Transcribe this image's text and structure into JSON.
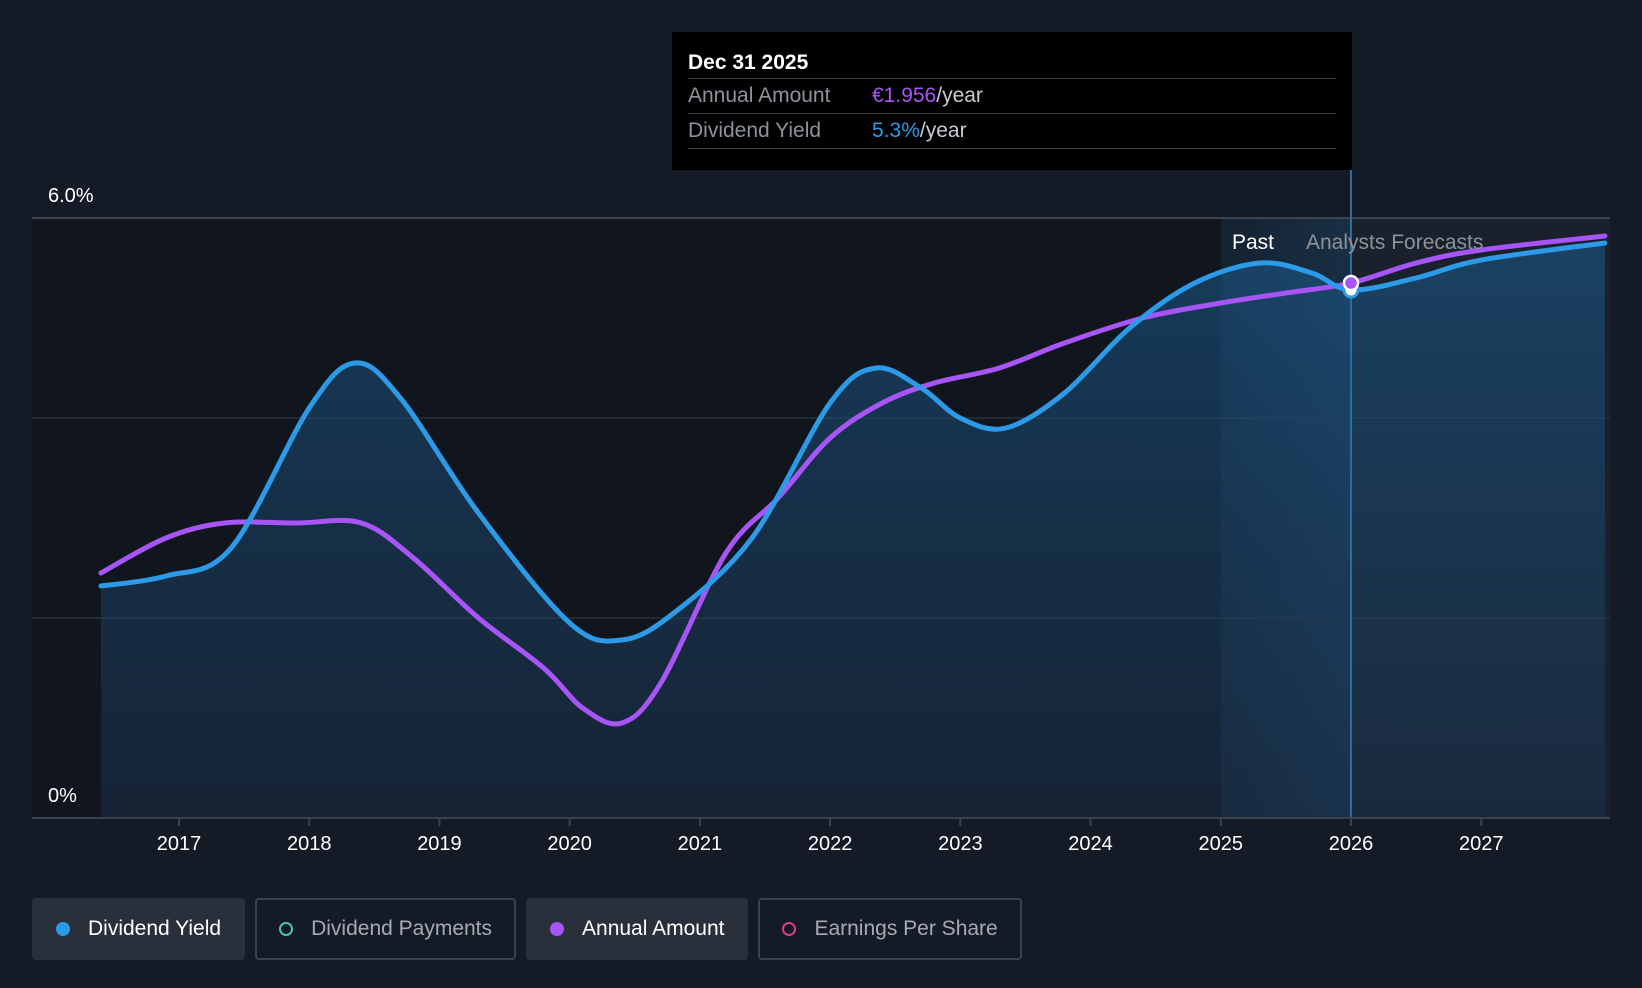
{
  "tooltip": {
    "date": "Dec 31 2025",
    "rows": [
      {
        "label": "Annual Amount",
        "value": "€1.956",
        "unit": "/year"
      },
      {
        "label": "Dividend Yield",
        "value": "5.3%",
        "unit": "/year"
      }
    ]
  },
  "regions": {
    "past": "Past",
    "forecast": "Analysts Forecasts"
  },
  "legend": [
    {
      "label": "Dividend Yield",
      "color": "#2c9ae6",
      "active": true,
      "filled": true
    },
    {
      "label": "Dividend Payments",
      "color": "#4fc3b0",
      "active": false,
      "filled": false
    },
    {
      "label": "Annual Amount",
      "color": "#a855f7",
      "active": true,
      "filled": true
    },
    {
      "label": "Earnings Per Share",
      "color": "#d6407f",
      "active": false,
      "filled": false
    }
  ],
  "chart_data": {
    "type": "line",
    "x_tick_labels": [
      "2017",
      "2018",
      "2019",
      "2020",
      "2021",
      "2022",
      "2023",
      "2024",
      "2025",
      "2026",
      "2027"
    ],
    "y_tick_labels": [
      "6.0%",
      "0%"
    ],
    "xlim": [
      2016.35,
      2027.95
    ],
    "ylim": [
      0,
      6.0
    ],
    "divider_x": 2026.0,
    "past_band": [
      2025.0,
      2026.0
    ],
    "grid": true,
    "series": [
      {
        "name": "Dividend Yield",
        "color": "#2c9ae6",
        "area": true,
        "points": [
          [
            2016.4,
            2.32
          ],
          [
            2016.9,
            2.42
          ],
          [
            2017.4,
            2.7
          ],
          [
            2018.0,
            4.1
          ],
          [
            2018.35,
            4.55
          ],
          [
            2018.7,
            4.2
          ],
          [
            2019.3,
            3.05
          ],
          [
            2020.0,
            1.95
          ],
          [
            2020.4,
            1.78
          ],
          [
            2020.8,
            2.05
          ],
          [
            2021.4,
            2.8
          ],
          [
            2022.0,
            4.15
          ],
          [
            2022.35,
            4.5
          ],
          [
            2022.7,
            4.3
          ],
          [
            2023.0,
            4.0
          ],
          [
            2023.35,
            3.9
          ],
          [
            2023.8,
            4.25
          ],
          [
            2024.3,
            4.9
          ],
          [
            2024.8,
            5.35
          ],
          [
            2025.3,
            5.55
          ],
          [
            2025.7,
            5.45
          ],
          [
            2026.0,
            5.28
          ],
          [
            2026.5,
            5.4
          ],
          [
            2027.0,
            5.58
          ],
          [
            2027.95,
            5.75
          ]
        ]
      },
      {
        "name": "Annual Amount",
        "color": "#a855f7",
        "area": false,
        "points": [
          [
            2016.4,
            2.45
          ],
          [
            2016.9,
            2.8
          ],
          [
            2017.35,
            2.95
          ],
          [
            2017.9,
            2.95
          ],
          [
            2018.4,
            2.95
          ],
          [
            2018.8,
            2.6
          ],
          [
            2019.3,
            2.0
          ],
          [
            2019.8,
            1.5
          ],
          [
            2020.1,
            1.1
          ],
          [
            2020.4,
            0.95
          ],
          [
            2020.7,
            1.35
          ],
          [
            2021.2,
            2.65
          ],
          [
            2021.6,
            3.2
          ],
          [
            2022.0,
            3.8
          ],
          [
            2022.4,
            4.15
          ],
          [
            2022.8,
            4.35
          ],
          [
            2023.3,
            4.5
          ],
          [
            2023.8,
            4.75
          ],
          [
            2024.4,
            5.0
          ],
          [
            2025.0,
            5.15
          ],
          [
            2025.5,
            5.25
          ],
          [
            2026.0,
            5.35
          ],
          [
            2026.5,
            5.55
          ],
          [
            2027.0,
            5.68
          ],
          [
            2027.95,
            5.82
          ]
        ]
      }
    ],
    "highlight_x": 2026.0
  }
}
